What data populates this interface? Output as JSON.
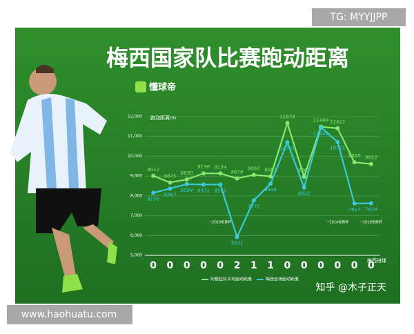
{
  "chart_data": {
    "type": "line",
    "title": "梅西国家队比赛跑动距离",
    "logo": "懂球帝",
    "y_label": "跑动距离/m",
    "categories": [
      null,
      null,
      null,
      null,
      null,
      null,
      null,
      null,
      null,
      null,
      null,
      null,
      null,
      null
    ],
    "goals": [
      0,
      0,
      0,
      0,
      0,
      2,
      1,
      1,
      0,
      0,
      0,
      0,
      0,
      0
    ],
    "goals_label": "梅西进球",
    "series": [
      {
        "name": "阿根廷队平均跑动距离",
        "color": "#86e86f",
        "values": [
          9012,
          8675,
          8830,
          9136,
          9134,
          8879,
          9063,
          8983,
          11674,
          8963,
          11489,
          11411,
          9695,
          9612
        ]
      },
      {
        "name": "梅西全场跑动距离",
        "color": "#3cc9dc",
        "values": [
          8155,
          8367,
          8594,
          8571,
          8571,
          5921,
          7772,
          8618,
          10701,
          8422,
          11448,
          10721,
          7617,
          7624
        ]
      }
    ],
    "annotations": [
      "~2010世界杯",
      "~2014世界杯",
      "~2018世界杯"
    ],
    "ylim": [
      5000,
      12000
    ],
    "yticks": [
      {
        "value": 5000,
        "label": "5,000"
      },
      {
        "value": 6000,
        "label": "6,000"
      },
      {
        "value": 7000,
        "label": "7,000"
      },
      {
        "value": 8000,
        "label": "8,000"
      },
      {
        "value": 9000,
        "label": "9,000"
      },
      {
        "value": 10000,
        "label": "10,000"
      },
      {
        "value": 11000,
        "label": "11,000"
      },
      {
        "value": 12000,
        "label": "12,000"
      }
    ],
    "grid": true
  },
  "watermarks": {
    "top_right": "TG: MYYJJPP",
    "bottom_left": "www.haohuatu.com",
    "bottom_right": "知乎 @木子正天"
  }
}
